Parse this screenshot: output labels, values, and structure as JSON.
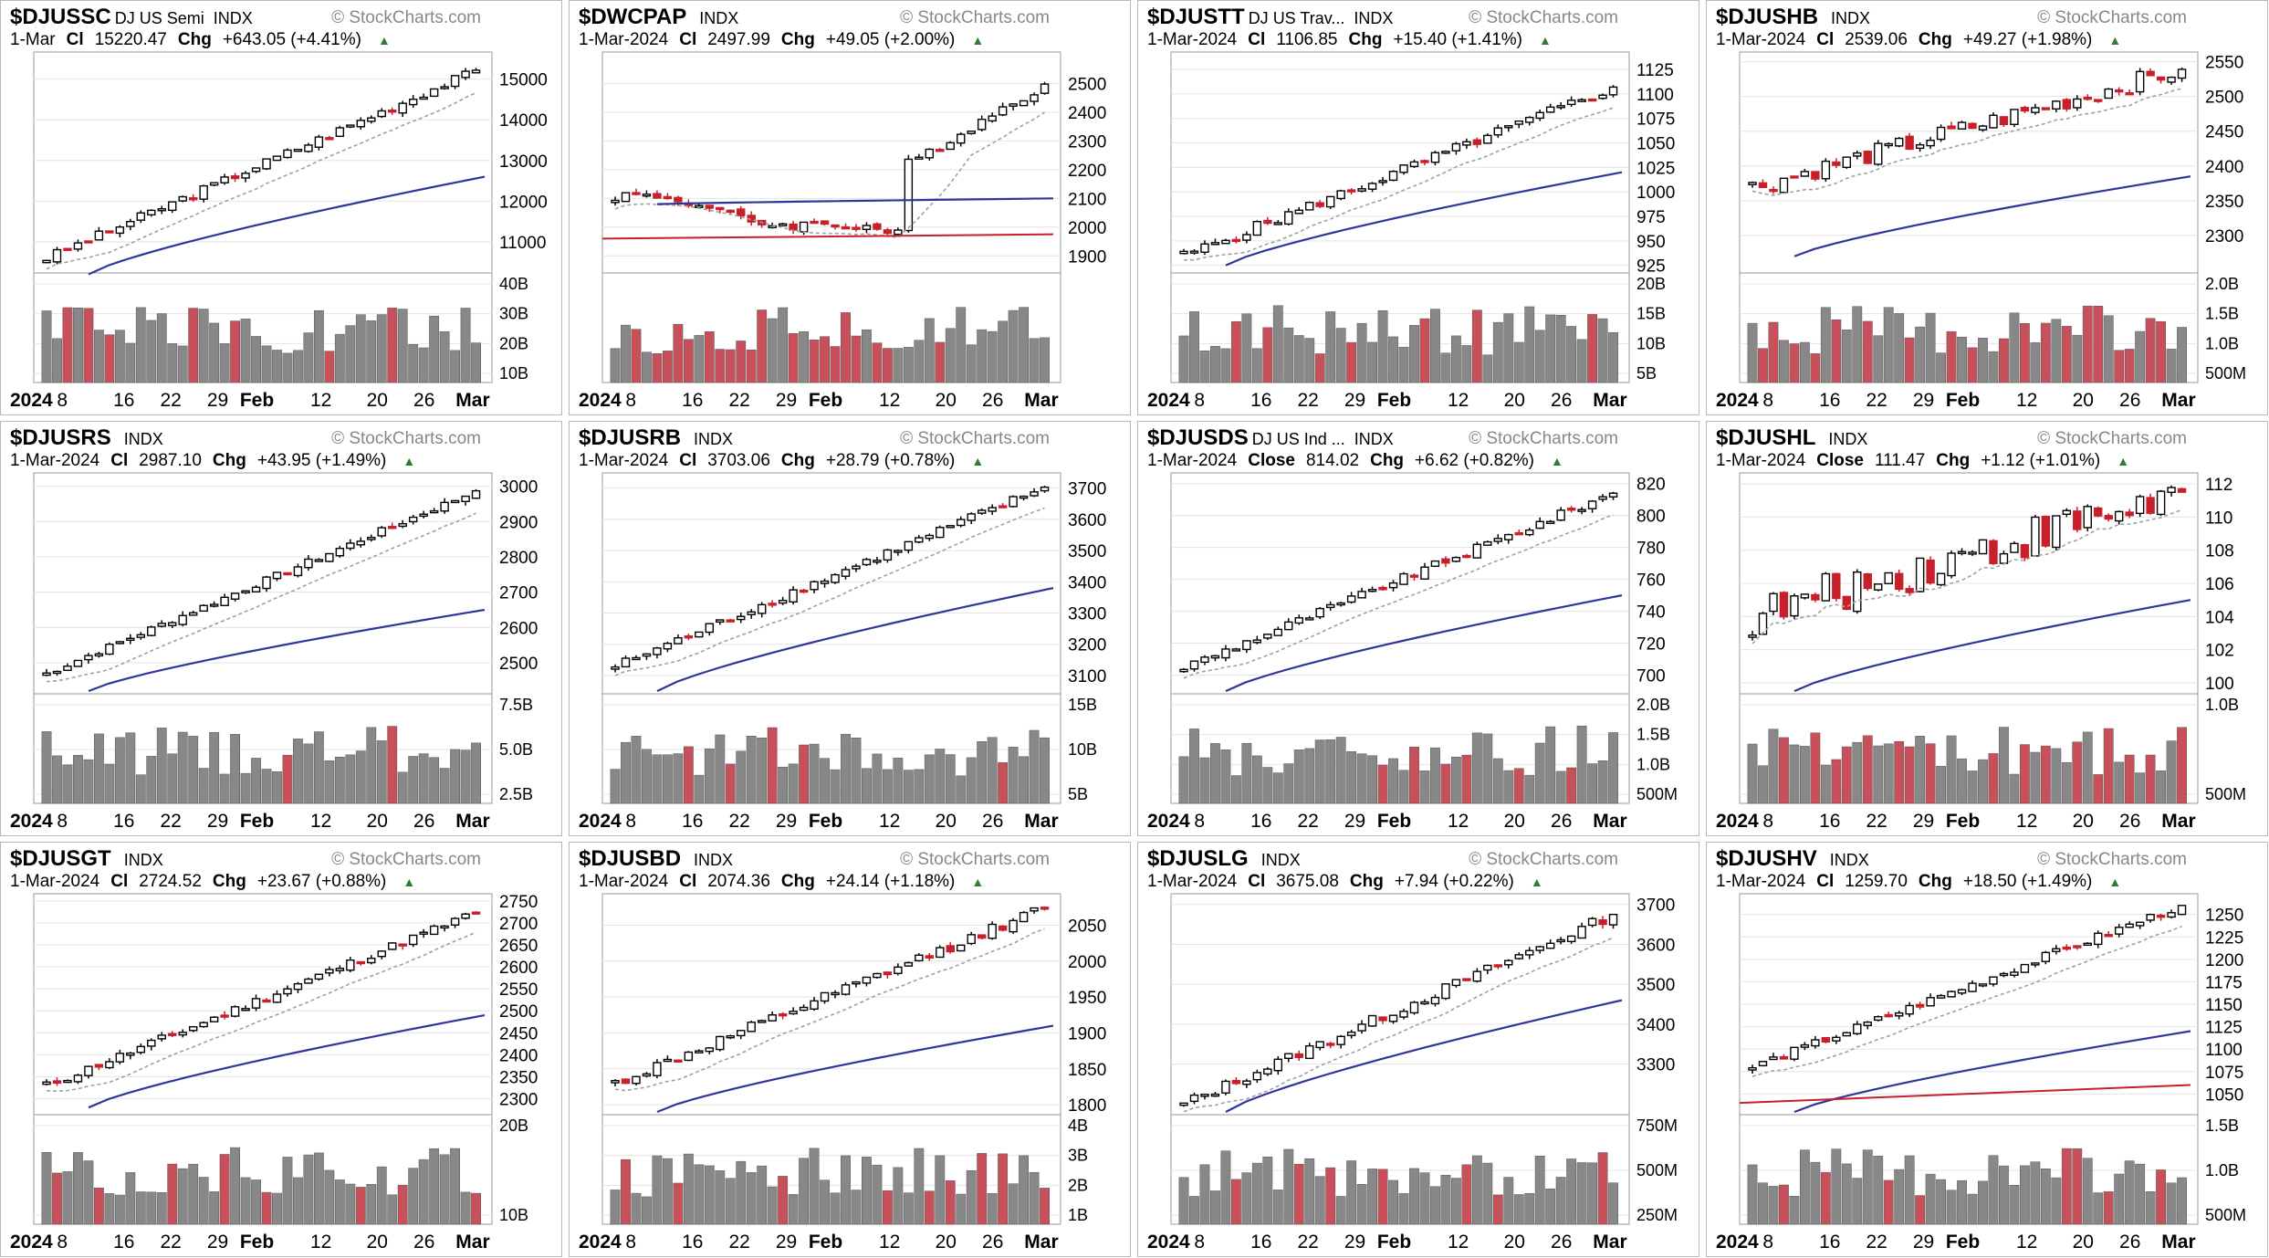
{
  "colors": {
    "up": "#ffffff",
    "down": "#c8202a",
    "flat": "#000000",
    "sma_short": "#a0a0a0",
    "sma_long": "#2f3699",
    "sma_red": "#c8202a",
    "vol_up": "#888888",
    "vol_down": "#c8505a",
    "grid": "#e4e4e4"
  },
  "panels": [
    {
      "symbol": "$DJUSSC",
      "name": "DJ US Semi",
      "indx": "INDX",
      "date": "1-Mar",
      "close_label": "Cl",
      "close": "15220.47",
      "chg_label": "Chg",
      "chg": "+643.05 (+4.41%)",
      "brand": "© StockCharts.com",
      "chart_data": {
        "type": "candlestick",
        "start": 10600,
        "end": 15220,
        "wiggle": 0.04,
        "ylim": [
          10300,
          15600
        ],
        "yticks": [
          11000,
          12000,
          13000,
          14000,
          15000
        ],
        "ytick_labels": [
          "11000",
          "12000",
          "13000",
          "14000",
          "15000"
        ],
        "vol_ticks": [
          "40B",
          "30B",
          "20B",
          "10B"
        ],
        "xtick_labels": [
          "2024",
          "8",
          "16",
          "22",
          "29",
          "Feb",
          "12",
          "20",
          "26",
          "Mar"
        ],
        "sma_long": [
          10200,
          12600
        ]
      }
    },
    {
      "symbol": "$DWCPAP",
      "name": "",
      "indx": "INDX",
      "date": "1-Mar-2024",
      "close_label": "Cl",
      "close": "2497.99",
      "chg_label": "Chg",
      "chg": "+49.05 (+2.00%)",
      "brand": "© StockCharts.com",
      "chart_data": {
        "type": "candlestick",
        "start": 2110,
        "end": 2498,
        "wiggle": 0.05,
        "ylim": [
          1850,
          2600
        ],
        "yticks": [
          1900,
          2000,
          2100,
          2200,
          2300,
          2400,
          2500
        ],
        "ytick_labels": [
          "1900",
          "2000",
          "2100",
          "2200",
          "2300",
          "2400",
          "2500"
        ],
        "vol_ticks": [],
        "xtick_labels": [
          "2024",
          "8",
          "16",
          "22",
          "29",
          "Feb",
          "12",
          "20",
          "26",
          "Mar"
        ],
        "sma_long": [
          2080,
          2100
        ],
        "sma_red": [
          1960,
          1975
        ],
        "gap": true
      }
    },
    {
      "symbol": "$DJUSTT",
      "name": "DJ US Trav...",
      "indx": "INDX",
      "date": "1-Mar-2024",
      "close_label": "Cl",
      "close": "1106.85",
      "chg_label": "Chg",
      "chg": "+15.40 (+1.41%)",
      "brand": "© StockCharts.com",
      "chart_data": {
        "type": "candlestick",
        "start": 935,
        "end": 1107,
        "wiggle": 0.05,
        "ylim": [
          920,
          1140
        ],
        "yticks": [
          925,
          950,
          975,
          1000,
          1025,
          1050,
          1075,
          1100,
          1125
        ],
        "ytick_labels": [
          "925",
          "950",
          "975",
          "1000",
          "1025",
          "1050",
          "1075",
          "1100",
          "1125"
        ],
        "vol_ticks": [
          "20B",
          "15B",
          "10B",
          "5B"
        ],
        "xtick_labels": [
          "2024",
          "8",
          "16",
          "22",
          "29",
          "Feb",
          "12",
          "20",
          "26",
          "Mar"
        ],
        "sma_long": [
          925,
          1020
        ]
      }
    },
    {
      "symbol": "$DJUSHB",
      "name": "",
      "indx": "INDX",
      "date": "1-Mar-2024",
      "close_label": "Cl",
      "close": "2539.06",
      "chg_label": "Chg",
      "chg": "+49.27 (+1.98%)",
      "brand": "© StockCharts.com",
      "chart_data": {
        "type": "candlestick",
        "start": 2370,
        "end": 2539,
        "wiggle": 0.09,
        "ylim": [
          2250,
          2560
        ],
        "yticks": [
          2300,
          2350,
          2400,
          2450,
          2500,
          2550
        ],
        "ytick_labels": [
          "2300",
          "2350",
          "2400",
          "2450",
          "2500",
          "2550"
        ],
        "vol_ticks": [
          "2.0B",
          "1.5B",
          "1.0B",
          "500M"
        ],
        "xtick_labels": [
          "2024",
          "8",
          "16",
          "22",
          "29",
          "Feb",
          "12",
          "20",
          "26",
          "Mar"
        ],
        "sma_long": [
          2270,
          2385
        ]
      }
    },
    {
      "symbol": "$DJUSRS",
      "name": "",
      "indx": "INDX",
      "date": "1-Mar-2024",
      "close_label": "Cl",
      "close": "2987.10",
      "chg_label": "Chg",
      "chg": "+43.95 (+1.49%)",
      "brand": "© StockCharts.com",
      "chart_data": {
        "type": "candlestick",
        "start": 2470,
        "end": 2987,
        "wiggle": 0.03,
        "ylim": [
          2420,
          3030
        ],
        "yticks": [
          2500,
          2600,
          2700,
          2800,
          2900,
          3000
        ],
        "ytick_labels": [
          "2500",
          "2600",
          "2700",
          "2800",
          "2900",
          "3000"
        ],
        "vol_ticks": [
          "7.5B",
          "5.0B",
          "2.5B"
        ],
        "xtick_labels": [
          "2024",
          "8",
          "16",
          "22",
          "29",
          "Feb",
          "12",
          "20",
          "26",
          "Mar"
        ],
        "sma_long": [
          2420,
          2650
        ]
      }
    },
    {
      "symbol": "$DJUSRB",
      "name": "",
      "indx": "INDX",
      "date": "1-Mar-2024",
      "close_label": "Cl",
      "close": "3703.06",
      "chg_label": "Chg",
      "chg": "+28.79 (+0.78%)",
      "brand": "© StockCharts.com",
      "chart_data": {
        "type": "candlestick",
        "start": 3130,
        "end": 3703,
        "wiggle": 0.04,
        "ylim": [
          3050,
          3740
        ],
        "yticks": [
          3100,
          3200,
          3300,
          3400,
          3500,
          3600,
          3700
        ],
        "ytick_labels": [
          "3100",
          "3200",
          "3300",
          "3400",
          "3500",
          "3600",
          "3700"
        ],
        "vol_ticks": [
          "15B",
          "10B",
          "5B"
        ],
        "xtick_labels": [
          "2024",
          "8",
          "16",
          "22",
          "29",
          "Feb",
          "12",
          "20",
          "26",
          "Mar"
        ],
        "sma_long": [
          3050,
          3380
        ]
      }
    },
    {
      "symbol": "$DJUSDS",
      "name": "DJ US Ind ...",
      "indx": "INDX",
      "date": "1-Mar-2024",
      "close_label": "Close",
      "close": "814.02",
      "chg_label": "Chg",
      "chg": "+6.62 (+0.82%)",
      "brand": "© StockCharts.com",
      "chart_data": {
        "type": "candlestick",
        "start": 705,
        "end": 814,
        "wiggle": 0.04,
        "ylim": [
          690,
          825
        ],
        "yticks": [
          700,
          720,
          740,
          760,
          780,
          800,
          820
        ],
        "ytick_labels": [
          "700",
          "720",
          "740",
          "760",
          "780",
          "800",
          "820"
        ],
        "vol_ticks": [
          "2.0B",
          "1.5B",
          "1.0B",
          "500M"
        ],
        "xtick_labels": [
          "2024",
          "8",
          "16",
          "22",
          "29",
          "Feb",
          "12",
          "20",
          "26",
          "Mar"
        ],
        "sma_long": [
          690,
          750
        ]
      }
    },
    {
      "symbol": "$DJUSHL",
      "name": "",
      "indx": "INDX",
      "date": "1-Mar-2024",
      "close_label": "Close",
      "close": "111.47",
      "chg_label": "Chg",
      "chg": "+1.12 (+1.01%)",
      "brand": "© StockCharts.com",
      "chart_data": {
        "type": "candlestick",
        "start": 104,
        "end": 111.5,
        "wiggle": 0.2,
        "ylim": [
          99.5,
          112.5
        ],
        "yticks": [
          100,
          102,
          104,
          106,
          108,
          110,
          112
        ],
        "ytick_labels": [
          "100",
          "102",
          "104",
          "106",
          "108",
          "110",
          "112"
        ],
        "vol_ticks": [
          "1.0B",
          "500M"
        ],
        "xtick_labels": [
          "2024",
          "8",
          "16",
          "22",
          "29",
          "Feb",
          "12",
          "20",
          "26",
          "Mar"
        ],
        "sma_long": [
          99.5,
          105
        ]
      }
    },
    {
      "symbol": "$DJUSGT",
      "name": "",
      "indx": "INDX",
      "date": "1-Mar-2024",
      "close_label": "Cl",
      "close": "2724.52",
      "chg_label": "Chg",
      "chg": "+23.67 (+0.88%)",
      "brand": "© StockCharts.com",
      "chart_data": {
        "type": "candlestick",
        "start": 2330,
        "end": 2724,
        "wiggle": 0.04,
        "ylim": [
          2270,
          2760
        ],
        "yticks": [
          2300,
          2350,
          2400,
          2450,
          2500,
          2550,
          2600,
          2650,
          2700,
          2750
        ],
        "ytick_labels": [
          "2300",
          "2350",
          "2400",
          "2450",
          "2500",
          "2550",
          "2600",
          "2650",
          "2700",
          "2750"
        ],
        "vol_ticks": [
          "20B",
          "10B"
        ],
        "xtick_labels": [
          "2024",
          "8",
          "16",
          "22",
          "29",
          "Feb",
          "12",
          "20",
          "26",
          "Mar"
        ],
        "sma_long": [
          2280,
          2490
        ]
      }
    },
    {
      "symbol": "$DJUSBD",
      "name": "",
      "indx": "INDX",
      "date": "1-Mar-2024",
      "close_label": "Cl",
      "close": "2074.36",
      "chg_label": "Chg",
      "chg": "+24.14 (+1.18%)",
      "brand": "© StockCharts.com",
      "chart_data": {
        "type": "candlestick",
        "start": 1830,
        "end": 2074,
        "wiggle": 0.05,
        "ylim": [
          1790,
          2090
        ],
        "yticks": [
          1800,
          1850,
          1900,
          1950,
          2000,
          2050
        ],
        "ytick_labels": [
          "1800",
          "1850",
          "1900",
          "1950",
          "2000",
          "2050"
        ],
        "vol_ticks": [
          "4B",
          "3B",
          "2B",
          "1B"
        ],
        "xtick_labels": [
          "2024",
          "8",
          "16",
          "22",
          "29",
          "Feb",
          "12",
          "20",
          "26",
          "Mar"
        ],
        "sma_long": [
          1790,
          1910
        ]
      }
    },
    {
      "symbol": "$DJUSLG",
      "name": "",
      "indx": "INDX",
      "date": "1-Mar-2024",
      "close_label": "Cl",
      "close": "3675.08",
      "chg_label": "Chg",
      "chg": "+7.94 (+0.22%)",
      "brand": "© StockCharts.com",
      "chart_data": {
        "type": "candlestick",
        "start": 3200,
        "end": 3675,
        "wiggle": 0.05,
        "ylim": [
          3180,
          3720
        ],
        "yticks": [
          3300,
          3400,
          3500,
          3600,
          3700
        ],
        "ytick_labels": [
          "3300",
          "3400",
          "3500",
          "3600",
          "3700"
        ],
        "vol_ticks": [
          "750M",
          "500M",
          "250M"
        ],
        "xtick_labels": [
          "2024",
          "8",
          "16",
          "22",
          "29",
          "Feb",
          "12",
          "20",
          "26",
          "Mar"
        ],
        "sma_long": [
          3180,
          3460
        ]
      }
    },
    {
      "symbol": "$DJUSHV",
      "name": "",
      "indx": "INDX",
      "date": "1-Mar-2024",
      "close_label": "Cl",
      "close": "1259.70",
      "chg_label": "Chg",
      "chg": "+18.50 (+1.49%)",
      "brand": "© StockCharts.com",
      "chart_data": {
        "type": "candlestick",
        "start": 1080,
        "end": 1260,
        "wiggle": 0.04,
        "ylim": [
          1030,
          1270
        ],
        "yticks": [
          1050,
          1075,
          1100,
          1125,
          1150,
          1175,
          1200,
          1225,
          1250
        ],
        "ytick_labels": [
          "1050",
          "1075",
          "1100",
          "1125",
          "1150",
          "1175",
          "1200",
          "1225",
          "1250"
        ],
        "vol_ticks": [
          "1.5B",
          "1.0B",
          "500M"
        ],
        "xtick_labels": [
          "2024",
          "8",
          "16",
          "22",
          "29",
          "Feb",
          "12",
          "20",
          "26",
          "Mar"
        ],
        "sma_long": [
          1030,
          1120
        ],
        "sma_red": [
          1040,
          1060
        ]
      }
    }
  ]
}
